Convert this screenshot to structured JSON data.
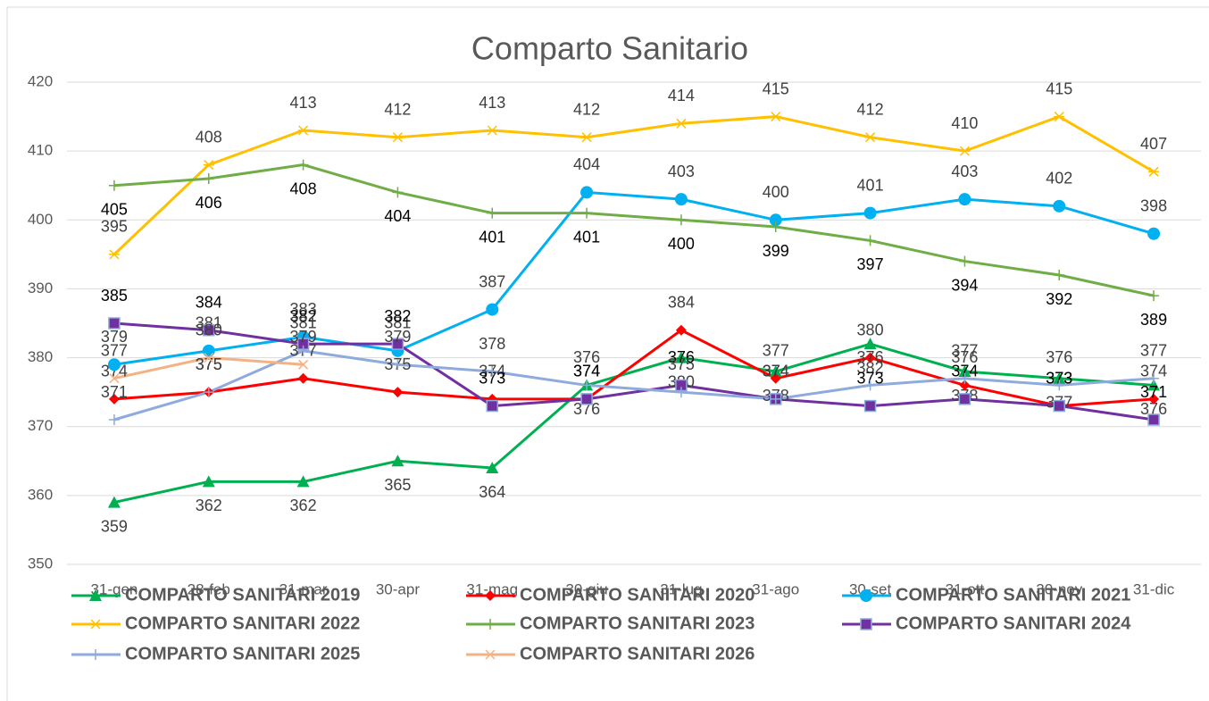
{
  "chart_data": {
    "type": "line",
    "title": "Comparto Sanitario",
    "categories": [
      "31-gen",
      "28-feb",
      "31-mar",
      "30-apr",
      "31-mag",
      "30-giu",
      "31-lug",
      "31-ago",
      "30-set",
      "31-ott",
      "30-nov",
      "31-dic"
    ],
    "ylim": [
      350,
      420
    ],
    "yticks": [
      350,
      360,
      370,
      380,
      390,
      400,
      410,
      420
    ],
    "grid": true,
    "legend": "bottom",
    "series": [
      {
        "name": "COMPARTO SANITARI 2019",
        "color": "#00b050",
        "marker": "triangle",
        "values": [
          359,
          362,
          362,
          365,
          364,
          376,
          380,
          378,
          382,
          378,
          377,
          376
        ]
      },
      {
        "name": "COMPARTO SANITARI 2020",
        "color": "#ff0000",
        "marker": "diamond",
        "values": [
          374,
          375,
          377,
          375,
          374,
          374,
          384,
          377,
          380,
          376,
          373,
          374
        ]
      },
      {
        "name": "COMPARTO SANITARI 2021",
        "color": "#00b0f0",
        "marker": "circle",
        "values": [
          379,
          381,
          383,
          381,
          387,
          404,
          403,
          400,
          401,
          403,
          402,
          398
        ]
      },
      {
        "name": "COMPARTO SANITARI 2022",
        "color": "#ffc000",
        "marker": "star",
        "values": [
          395,
          408,
          413,
          412,
          413,
          412,
          414,
          415,
          412,
          410,
          415,
          407
        ]
      },
      {
        "name": "COMPARTO SANITARI 2023",
        "color": "#70ad47",
        "marker": "plus",
        "values": [
          405,
          406,
          408,
          404,
          401,
          401,
          400,
          399,
          397,
          394,
          392,
          389
        ]
      },
      {
        "name": "COMPARTO SANITARI 2024",
        "color": "#7030a0",
        "marker": "square",
        "values": [
          385,
          384,
          382,
          382,
          373,
          374,
          376,
          374,
          373,
          374,
          373,
          371
        ]
      },
      {
        "name": "COMPARTO SANITARI 2025",
        "color": "#8faadc",
        "marker": "plus",
        "values": [
          371,
          375,
          381,
          379,
          378,
          376,
          375,
          374,
          376,
          377,
          376,
          377
        ]
      },
      {
        "name": "COMPARTO SANITARI 2026",
        "color": "#f4b183",
        "marker": "x",
        "values": [
          377,
          380,
          379,
          null,
          null,
          null,
          null,
          null,
          null,
          null,
          null,
          null
        ]
      }
    ]
  }
}
